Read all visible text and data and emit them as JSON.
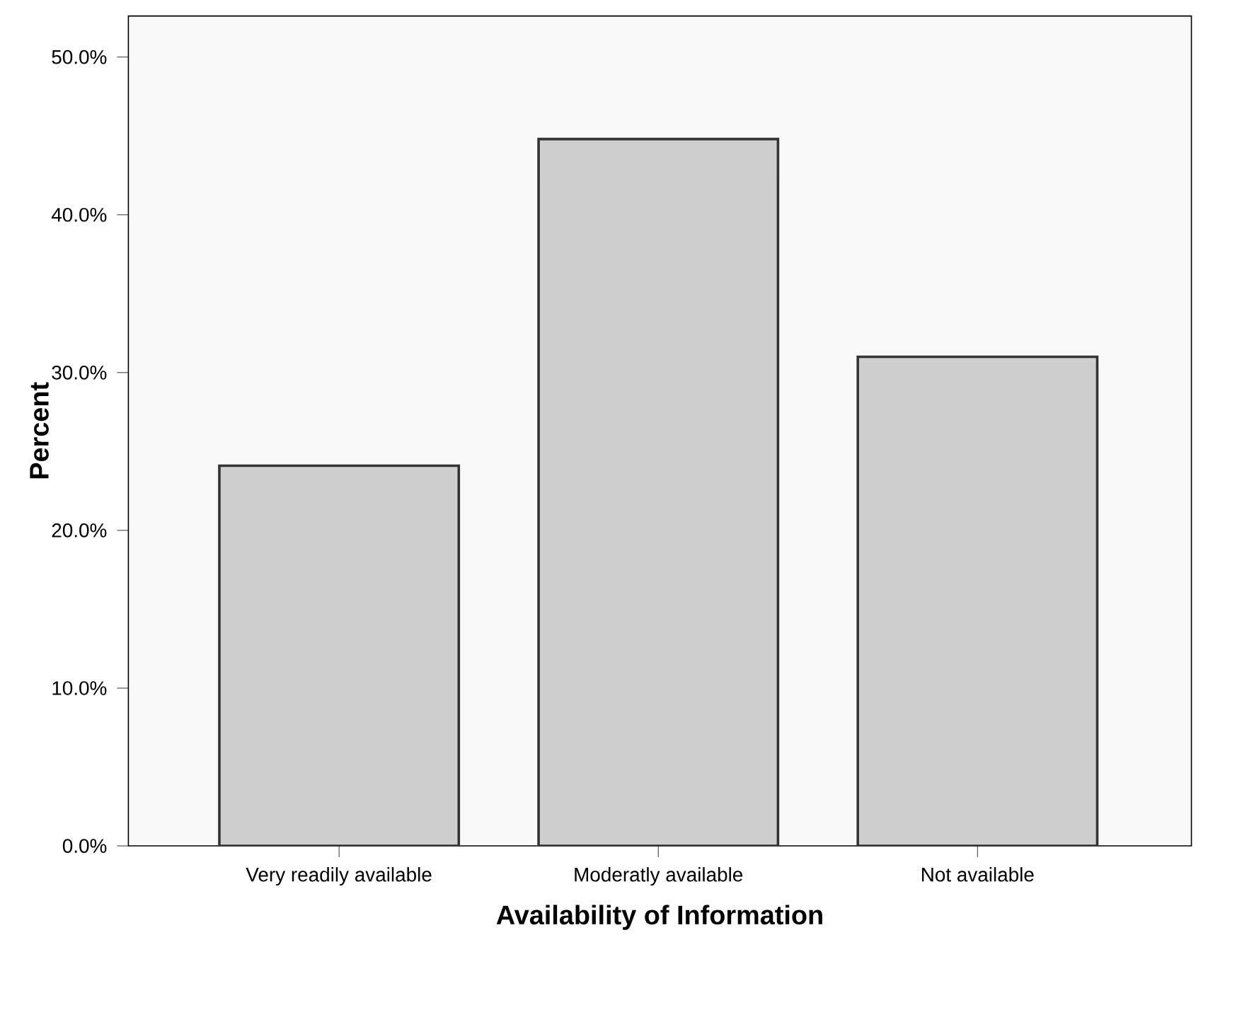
{
  "chart_data": {
    "type": "bar",
    "xlabel": "Availability of Information",
    "ylabel": "Percent",
    "categories": [
      "Very readily available",
      "Moderatly available",
      "Not available"
    ],
    "values": [
      24.1,
      44.8,
      31.0
    ],
    "color": "#cfcfcf",
    "ylim": [
      0,
      52.6
    ],
    "yticks": [
      {
        "value": 0,
        "label": "0.0%"
      },
      {
        "value": 10,
        "label": "10.0%"
      },
      {
        "value": 20,
        "label": "20.0%"
      },
      {
        "value": 30,
        "label": "30.0%"
      },
      {
        "value": 40,
        "label": "40.0%"
      },
      {
        "value": 50,
        "label": "50.0%"
      }
    ],
    "grid": false
  }
}
